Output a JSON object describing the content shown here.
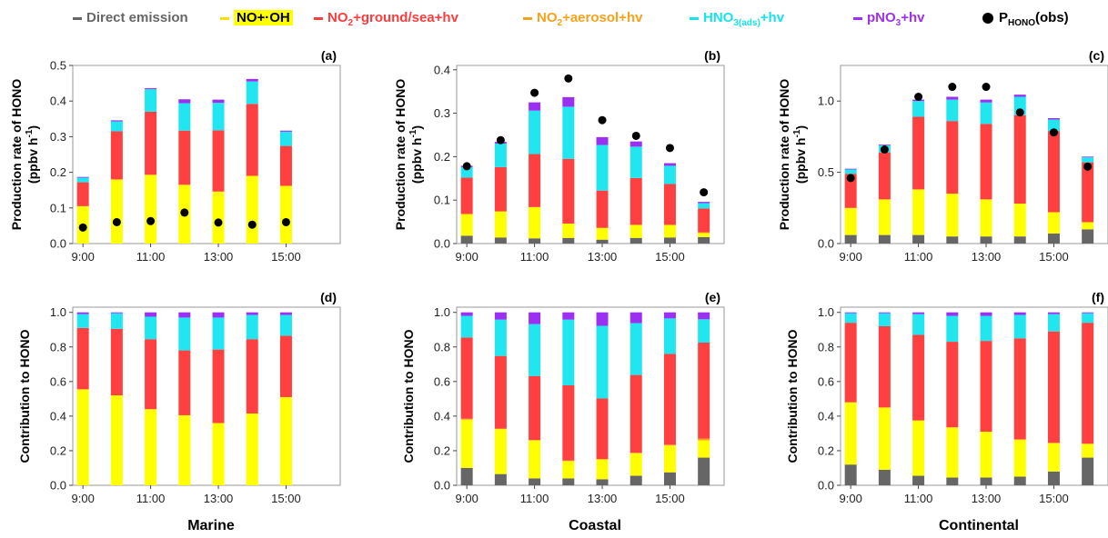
{
  "legend": [
    {
      "key": "direct",
      "label": "Direct emission",
      "color": "#666666",
      "sub": "",
      "tail": "",
      "highlight": false
    },
    {
      "key": "nooh",
      "label": "NO+·OH",
      "color": "#000000",
      "sub": "",
      "tail": "",
      "highlight": true
    },
    {
      "key": "ground",
      "label": "NO",
      "sub": "2",
      "tail": "+ground/sea+hv",
      "color": "#ff3b3b",
      "highlight": false
    },
    {
      "key": "aerosol",
      "label": "NO",
      "sub": "2",
      "tail": "+aerosol+hv",
      "color": "#f7a21b",
      "highlight": false
    },
    {
      "key": "hno3",
      "label": "HNO",
      "sub": "3(ads)",
      "tail": "+hv",
      "color": "#17e3ea",
      "highlight": false
    },
    {
      "key": "pno3",
      "label": "pNO",
      "sub": "3",
      "tail": "+hv",
      "color": "#9b30f2",
      "highlight": false
    },
    {
      "key": "obs",
      "label": "P",
      "sub": "HONO",
      "tail": "(obs)",
      "color": "#000000",
      "highlight": false
    }
  ],
  "colors": {
    "direct": "#666666",
    "nooh": "#ffff00",
    "ground": "#ff4040",
    "aerosol": "#f7a21b",
    "hno3": "#22e6ef",
    "pno3": "#9b30f2",
    "obs": "#000000"
  },
  "regions": [
    "Marine",
    "Coastal",
    "Continental"
  ],
  "chart_data": [
    {
      "panel": "(a)",
      "type": "bar",
      "stacked": true,
      "ylabel_line1": "Production rate of HONO",
      "ylabel_line2": "(ppbv h-1)",
      "ylim": [
        0,
        0.5
      ],
      "yticks": [
        0.0,
        0.1,
        0.2,
        0.3,
        0.4,
        0.5
      ],
      "ytick_labels": [
        "0.0",
        "0.1",
        "0.2",
        "0.3",
        "0.4",
        "0.5"
      ],
      "x": [
        9,
        10,
        11,
        12,
        13,
        14,
        15
      ],
      "xlim": [
        8.7,
        16.6
      ],
      "xticks": [
        9,
        11,
        13,
        15
      ],
      "xtick_labels": [
        "9:00",
        "11:00",
        "13:00",
        "15:00"
      ],
      "series": [
        {
          "key": "direct",
          "values": [
            0,
            0,
            0,
            0,
            0,
            0,
            0
          ]
        },
        {
          "key": "nooh",
          "values": [
            0.105,
            0.18,
            0.193,
            0.165,
            0.146,
            0.19,
            0.162
          ]
        },
        {
          "key": "aerosol",
          "values": [
            0,
            0,
            0,
            0,
            0,
            0,
            0
          ]
        },
        {
          "key": "ground",
          "values": [
            0.067,
            0.135,
            0.177,
            0.152,
            0.172,
            0.202,
            0.112
          ]
        },
        {
          "key": "hno3",
          "values": [
            0.013,
            0.028,
            0.063,
            0.077,
            0.077,
            0.063,
            0.04
          ]
        },
        {
          "key": "pno3",
          "values": [
            0.002,
            0.003,
            0.003,
            0.011,
            0.009,
            0.007,
            0.003
          ]
        }
      ],
      "obs": [
        0.045,
        0.06,
        0.063,
        0.087,
        0.059,
        0.053,
        0.06
      ]
    },
    {
      "panel": "(b)",
      "type": "bar",
      "stacked": true,
      "ylabel_line1": "Production rate of HONO",
      "ylabel_line2": "(ppbv h-1)",
      "ylim": [
        0,
        0.41
      ],
      "yticks": [
        0.0,
        0.1,
        0.2,
        0.3,
        0.4
      ],
      "ytick_labels": [
        "0.0",
        "0.1",
        "0.2",
        "0.3",
        "0.4"
      ],
      "x": [
        9,
        10,
        11,
        12,
        13,
        14,
        15,
        16
      ],
      "xlim": [
        8.7,
        16.6
      ],
      "xticks": [
        9,
        11,
        13,
        15
      ],
      "xtick_labels": [
        "9:00",
        "11:00",
        "13:00",
        "15:00"
      ],
      "series": [
        {
          "key": "direct",
          "values": [
            0.018,
            0.014,
            0.012,
            0.013,
            0.009,
            0.013,
            0.014,
            0.015
          ]
        },
        {
          "key": "nooh",
          "values": [
            0.05,
            0.06,
            0.072,
            0.033,
            0.027,
            0.03,
            0.029,
            0.009
          ]
        },
        {
          "key": "aerosol",
          "values": [
            0,
            0,
            0,
            0,
            0,
            0,
            0,
            0.002
          ]
        },
        {
          "key": "ground",
          "values": [
            0.084,
            0.102,
            0.122,
            0.149,
            0.086,
            0.108,
            0.094,
            0.055
          ]
        },
        {
          "key": "hno3",
          "values": [
            0.024,
            0.054,
            0.1,
            0.12,
            0.105,
            0.072,
            0.042,
            0.012
          ]
        },
        {
          "key": "pno3",
          "values": [
            0.003,
            0.004,
            0.019,
            0.022,
            0.018,
            0.012,
            0.006,
            0.003
          ]
        }
      ],
      "obs": [
        0.178,
        0.238,
        0.347,
        0.38,
        0.284,
        0.248,
        0.22,
        0.118
      ]
    },
    {
      "panel": "(c)",
      "type": "bar",
      "stacked": true,
      "ylabel_line1": "Production rate of HONO",
      "ylabel_line2": "(ppbv h-1)",
      "ylim": [
        0,
        1.25
      ],
      "yticks": [
        0.0,
        0.5,
        1.0
      ],
      "ytick_labels": [
        "0.0",
        "0.5",
        "1.0"
      ],
      "x": [
        9,
        10,
        11,
        12,
        13,
        14,
        15,
        16
      ],
      "xlim": [
        8.7,
        16.6
      ],
      "xticks": [
        9,
        11,
        13,
        15
      ],
      "xtick_labels": [
        "9:00",
        "11:00",
        "13:00",
        "15:00"
      ],
      "series": [
        {
          "key": "direct",
          "values": [
            0.06,
            0.06,
            0.06,
            0.05,
            0.05,
            0.05,
            0.07,
            0.1
          ]
        },
        {
          "key": "nooh",
          "values": [
            0.19,
            0.25,
            0.32,
            0.3,
            0.26,
            0.23,
            0.15,
            0.05
          ]
        },
        {
          "key": "aerosol",
          "values": [
            0,
            0,
            0,
            0,
            0,
            0,
            0,
            0
          ]
        },
        {
          "key": "ground",
          "values": [
            0.24,
            0.33,
            0.51,
            0.51,
            0.53,
            0.62,
            0.57,
            0.42
          ]
        },
        {
          "key": "hno3",
          "values": [
            0.03,
            0.05,
            0.11,
            0.15,
            0.15,
            0.13,
            0.08,
            0.035
          ]
        },
        {
          "key": "pno3",
          "values": [
            0.005,
            0.005,
            0.01,
            0.02,
            0.02,
            0.015,
            0.01,
            0.005
          ]
        }
      ],
      "obs": [
        0.46,
        0.66,
        1.03,
        1.1,
        1.1,
        0.92,
        0.78,
        0.54
      ]
    },
    {
      "panel": "(d)",
      "type": "bar",
      "stacked": true,
      "ylabel_line1": "Contribution to HONO",
      "ylabel_line2": "",
      "ylim": [
        0,
        1.03
      ],
      "yticks": [
        0.0,
        0.2,
        0.4,
        0.6,
        0.8,
        1.0
      ],
      "ytick_labels": [
        "0.0",
        "0.2",
        "0.4",
        "0.6",
        "0.8",
        "1.0"
      ],
      "x": [
        9,
        10,
        11,
        12,
        13,
        14,
        15
      ],
      "xlim": [
        8.7,
        16.6
      ],
      "xticks": [
        9,
        11,
        13,
        15
      ],
      "xtick_labels": [
        "9:00",
        "11:00",
        "13:00",
        "15:00"
      ],
      "series": [
        {
          "key": "direct",
          "values": [
            0,
            0,
            0,
            0,
            0,
            0,
            0
          ]
        },
        {
          "key": "nooh",
          "values": [
            0.555,
            0.52,
            0.44,
            0.405,
            0.36,
            0.415,
            0.51
          ]
        },
        {
          "key": "aerosol",
          "values": [
            0,
            0,
            0,
            0,
            0,
            0,
            0
          ]
        },
        {
          "key": "ground",
          "values": [
            0.355,
            0.385,
            0.405,
            0.375,
            0.425,
            0.43,
            0.355
          ]
        },
        {
          "key": "hno3",
          "values": [
            0.08,
            0.09,
            0.13,
            0.19,
            0.185,
            0.14,
            0.12
          ]
        },
        {
          "key": "pno3",
          "values": [
            0.01,
            0.005,
            0.025,
            0.03,
            0.03,
            0.015,
            0.015
          ]
        }
      ]
    },
    {
      "panel": "(e)",
      "type": "bar",
      "stacked": true,
      "ylabel_line1": "Contribution to HONO",
      "ylabel_line2": "",
      "ylim": [
        0,
        1.03
      ],
      "yticks": [
        0.0,
        0.2,
        0.4,
        0.6,
        0.8,
        1.0
      ],
      "ytick_labels": [
        "0.0",
        "0.2",
        "0.4",
        "0.6",
        "0.8",
        "1.0"
      ],
      "x": [
        9,
        10,
        11,
        12,
        13,
        14,
        15,
        16
      ],
      "xlim": [
        8.7,
        16.6
      ],
      "xticks": [
        9,
        11,
        13,
        15
      ],
      "xtick_labels": [
        "9:00",
        "11:00",
        "13:00",
        "15:00"
      ],
      "series": [
        {
          "key": "direct",
          "values": [
            0.1,
            0.065,
            0.04,
            0.04,
            0.035,
            0.055,
            0.075,
            0.16
          ]
        },
        {
          "key": "nooh",
          "values": [
            0.28,
            0.26,
            0.22,
            0.1,
            0.115,
            0.13,
            0.155,
            0.1
          ]
        },
        {
          "key": "aerosol",
          "values": [
            0.005,
            0.003,
            0.002,
            0.003,
            0.002,
            0.003,
            0.005,
            0.01
          ]
        },
        {
          "key": "ground",
          "values": [
            0.47,
            0.42,
            0.37,
            0.435,
            0.35,
            0.45,
            0.525,
            0.555
          ]
        },
        {
          "key": "hno3",
          "values": [
            0.125,
            0.21,
            0.3,
            0.38,
            0.42,
            0.3,
            0.205,
            0.135
          ]
        },
        {
          "key": "pno3",
          "values": [
            0.02,
            0.042,
            0.068,
            0.042,
            0.078,
            0.062,
            0.035,
            0.04
          ]
        }
      ]
    },
    {
      "panel": "(f)",
      "type": "bar",
      "stacked": true,
      "ylabel_line1": "Contribution to HONO",
      "ylabel_line2": "",
      "ylim": [
        0,
        1.03
      ],
      "yticks": [
        0.0,
        0.2,
        0.4,
        0.6,
        0.8,
        1.0
      ],
      "ytick_labels": [
        "0.0",
        "0.2",
        "0.4",
        "0.6",
        "0.8",
        "1.0"
      ],
      "x": [
        9,
        10,
        11,
        12,
        13,
        14,
        15,
        16
      ],
      "xlim": [
        8.7,
        16.6
      ],
      "xticks": [
        9,
        11,
        13,
        15
      ],
      "xtick_labels": [
        "9:00",
        "11:00",
        "13:00",
        "15:00"
      ],
      "series": [
        {
          "key": "direct",
          "values": [
            0.12,
            0.09,
            0.055,
            0.045,
            0.045,
            0.05,
            0.08,
            0.16
          ]
        },
        {
          "key": "nooh",
          "values": [
            0.36,
            0.36,
            0.32,
            0.29,
            0.265,
            0.215,
            0.165,
            0.08
          ]
        },
        {
          "key": "aerosol",
          "values": [
            0,
            0,
            0,
            0,
            0,
            0,
            0,
            0
          ]
        },
        {
          "key": "ground",
          "values": [
            0.46,
            0.47,
            0.495,
            0.495,
            0.525,
            0.585,
            0.645,
            0.7
          ]
        },
        {
          "key": "hno3",
          "values": [
            0.055,
            0.075,
            0.12,
            0.15,
            0.145,
            0.135,
            0.1,
            0.055
          ]
        },
        {
          "key": "pno3",
          "values": [
            0.005,
            0.005,
            0.01,
            0.02,
            0.02,
            0.015,
            0.01,
            0.005
          ]
        }
      ]
    }
  ]
}
